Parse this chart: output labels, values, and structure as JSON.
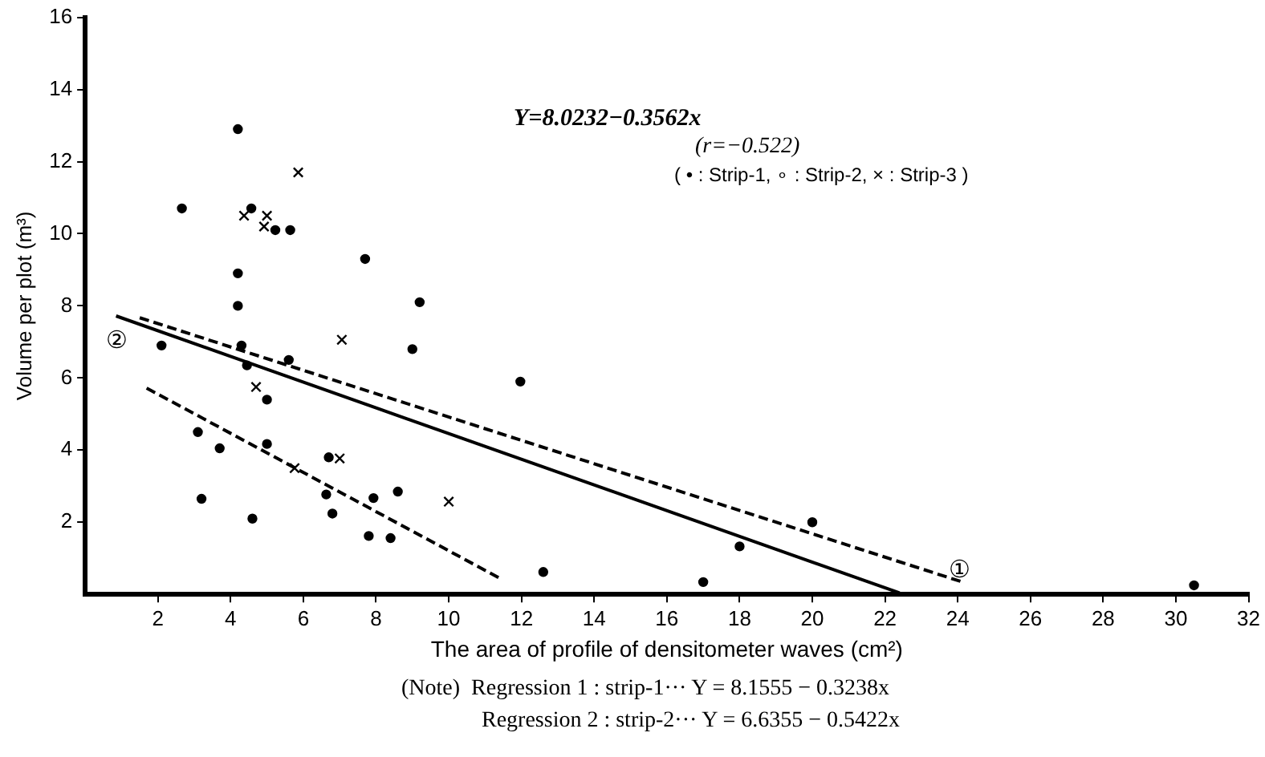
{
  "chart_data": {
    "type": "scatter",
    "xlabel": "The area of profile of densitometer waves (cm²)",
    "ylabel": "Volume per plot (m³)",
    "xlim": [
      0,
      32
    ],
    "xticks": [
      2,
      4,
      6,
      8,
      10,
      12,
      14,
      16,
      18,
      20,
      22,
      24,
      26,
      28,
      30,
      32
    ],
    "ylim": [
      0,
      16
    ],
    "yticks": [
      2,
      4,
      6,
      8,
      10,
      12,
      14,
      16
    ],
    "grid": false,
    "series": [
      {
        "marker": "circle",
        "color": "#000000",
        "x": [
          4.2,
          2.66,
          4.57,
          5.23,
          5.64,
          7.7,
          4.2,
          4.2,
          9.2,
          2.1,
          4.3,
          9.0,
          5.6,
          4.45,
          5.0,
          3.1,
          3.7,
          3.2,
          4.6,
          11.97,
          12.6,
          17.0,
          18.0,
          20.0,
          30.5
        ],
        "values": [
          12.9,
          10.7,
          10.7,
          10.1,
          10.1,
          9.3,
          8.9,
          8.0,
          8.1,
          6.9,
          6.9,
          6.8,
          6.5,
          6.35,
          5.4,
          4.5,
          4.05,
          2.65,
          2.1,
          5.9,
          0.62,
          0.34,
          1.33,
          2.0,
          0.25
        ]
      },
      {
        "marker": "circle",
        "color": "#000000",
        "x": [
          5.0,
          6.7,
          6.63,
          6.8,
          7.93,
          8.6,
          7.8,
          8.4
        ],
        "values": [
          4.17,
          3.8,
          2.77,
          2.24,
          2.67,
          2.85,
          1.62,
          1.56
        ]
      },
      {
        "marker": "cross",
        "color": "#000000",
        "x": [
          5.86,
          4.37,
          5.0,
          4.92,
          7.06,
          4.7,
          7.0,
          5.76,
          10.0
        ],
        "values": [
          11.7,
          10.5,
          10.5,
          10.2,
          7.06,
          5.75,
          3.77,
          3.5,
          2.57
        ]
      },
      {
        "type": "line",
        "line_style": "solid",
        "color": "#000000",
        "x": [
          0.85,
          22.4
        ],
        "values": [
          7.72,
          0.04
        ]
      },
      {
        "type": "line",
        "line_style": "dashed",
        "color": "#000000",
        "x": [
          1.5,
          24.2
        ],
        "values": [
          7.67,
          0.32
        ]
      },
      {
        "type": "line",
        "line_style": "dashed",
        "color": "#000000",
        "x": [
          1.69,
          11.4
        ],
        "values": [
          5.72,
          0.45
        ]
      }
    ],
    "annotations": [
      "Y=8.0232−0.3562x",
      "(r=−0.522)",
      "( • : Strip-1, ∘ : Strip-2, × : Strip-3 )",
      "①",
      "②",
      "(Note)  Regression 1 : strip-1··· Y = 8.1555 − 0.3238x",
      "Regression 2 : strip-2··· Y = 6.6355 − 0.5422x"
    ]
  }
}
